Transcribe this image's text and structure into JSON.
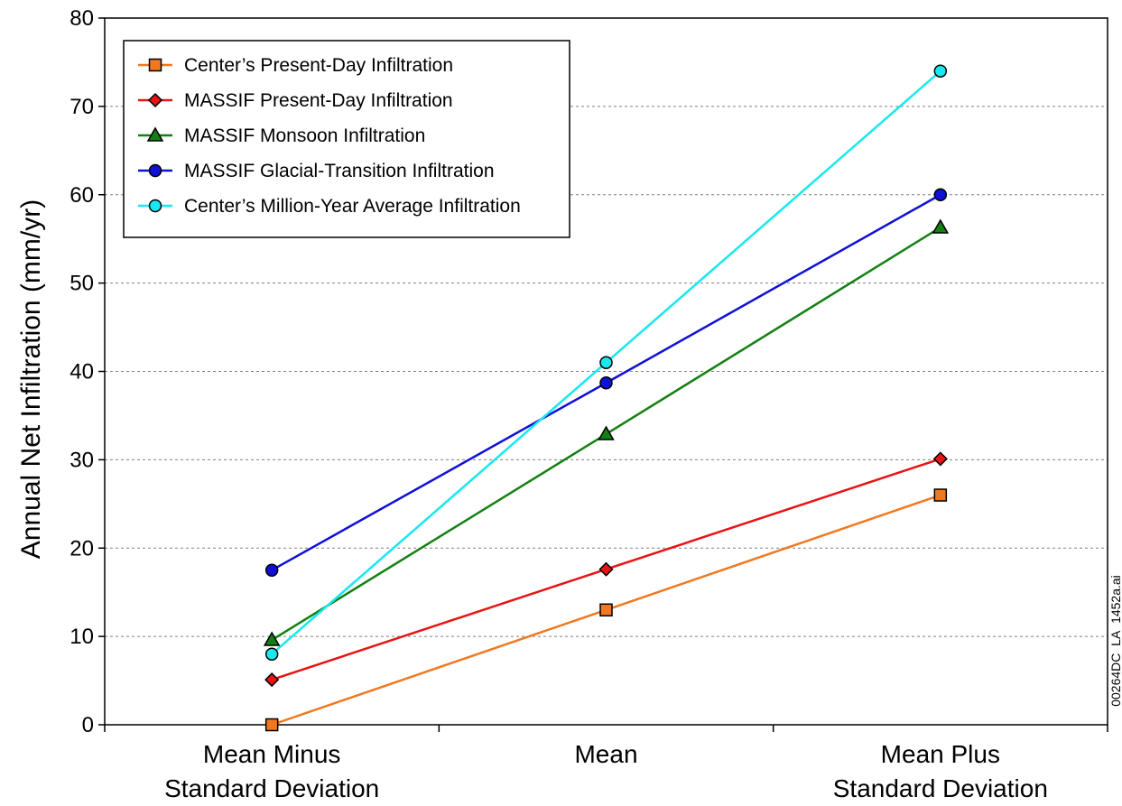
{
  "chart_data": {
    "type": "line",
    "title": "",
    "xlabel": "",
    "ylabel": "Annual Net Infiltration (mm/yr)",
    "categories": [
      [
        "Mean Minus",
        "Standard Deviation"
      ],
      [
        "Mean"
      ],
      [
        "Mean Plus",
        "Standard Deviation"
      ]
    ],
    "ylim": [
      0,
      80
    ],
    "yticks": [
      0,
      10,
      20,
      30,
      40,
      50,
      60,
      70,
      80
    ],
    "grid": "horizontal dashed",
    "legend_position": "top-left",
    "series": [
      {
        "name": "Center’s Present-Day Infiltration",
        "marker": "square",
        "color": "#f07820",
        "values": [
          0,
          13,
          26
        ]
      },
      {
        "name": "MASSIF Present-Day Infiltration",
        "marker": "diamond",
        "color": "#e81414",
        "values": [
          5.1,
          17.6,
          30.1
        ]
      },
      {
        "name": "MASSIF Monsoon Infiltration",
        "marker": "triangle",
        "color": "#128012",
        "values": [
          9.6,
          32.9,
          56.3
        ]
      },
      {
        "name": "MASSIF Glacial-Transition Infiltration",
        "marker": "circle",
        "color": "#1010d8",
        "values": [
          17.5,
          38.7,
          60
        ]
      },
      {
        "name": "Center’s Million-Year Average Infiltration",
        "marker": "circle",
        "color": "#18e8f0",
        "values": [
          8,
          41,
          74
        ]
      }
    ]
  },
  "annotation": "00264DC_LA_1452a.ai"
}
